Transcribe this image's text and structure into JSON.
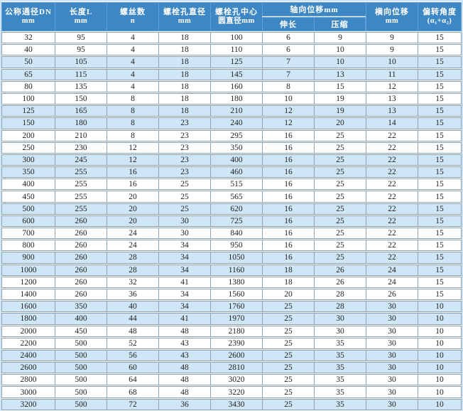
{
  "colors": {
    "header_bg": "#3d87c4",
    "header_text": "#ffffff",
    "row_alt_bg": "#cfe6f7",
    "row_bg": "#ffffff",
    "cell_border": "#8da2b2",
    "header_border": "#5f9fd4",
    "outer_frame": "#cfe4f4",
    "cell_text": "#222222"
  },
  "header": {
    "simple_cols": [
      {
        "line1": "公称通径DN",
        "line2": "mm"
      },
      {
        "line1": "长度L",
        "line2": "mm"
      },
      {
        "line1": "螺丝数",
        "line2": "n"
      },
      {
        "line1": "螺栓孔直径",
        "line2": "mm"
      },
      {
        "line1": "螺栓孔中心",
        "line2": "圆直径mm"
      }
    ],
    "axial_group": {
      "title": "轴向位移mm",
      "extend": "伸长",
      "compress": "压缩"
    },
    "lateral": {
      "line1": "横向位移",
      "line2": "mm"
    },
    "deflection": {
      "line1": "偏转角度",
      "line2": "(α₁+α₂)"
    }
  },
  "chart_data": {
    "type": "table",
    "columns": [
      "公称通径DN mm",
      "长度L mm",
      "螺丝数 n",
      "螺栓孔直径 mm",
      "螺栓孔中心圆直径mm",
      "轴向位移mm 伸长",
      "轴向位移mm 压缩",
      "横向位移 mm",
      "偏转角度 (α₁+α₂)"
    ],
    "rows": "see table.rows"
  },
  "table": {
    "rows": [
      [
        32,
        95,
        4,
        18,
        100,
        6,
        9,
        9,
        15
      ],
      [
        40,
        95,
        4,
        18,
        110,
        6,
        10,
        9,
        15
      ],
      [
        50,
        105,
        4,
        18,
        125,
        7,
        10,
        10,
        15
      ],
      [
        65,
        115,
        4,
        18,
        145,
        7,
        13,
        11,
        15
      ],
      [
        80,
        135,
        4,
        18,
        160,
        8,
        15,
        12,
        15
      ],
      [
        100,
        150,
        8,
        18,
        180,
        10,
        19,
        13,
        15
      ],
      [
        125,
        165,
        8,
        18,
        210,
        12,
        19,
        13,
        15
      ],
      [
        150,
        180,
        8,
        23,
        240,
        12,
        20,
        14,
        15
      ],
      [
        200,
        210,
        8,
        23,
        295,
        16,
        25,
        22,
        15
      ],
      [
        250,
        230,
        12,
        23,
        350,
        16,
        25,
        22,
        15
      ],
      [
        300,
        245,
        12,
        23,
        400,
        16,
        25,
        22,
        15
      ],
      [
        350,
        255,
        16,
        23,
        460,
        16,
        25,
        22,
        15
      ],
      [
        400,
        255,
        16,
        25,
        515,
        16,
        25,
        22,
        15
      ],
      [
        450,
        255,
        20,
        25,
        565,
        16,
        25,
        22,
        15
      ],
      [
        500,
        255,
        20,
        25,
        620,
        16,
        25,
        22,
        15
      ],
      [
        600,
        260,
        20,
        30,
        725,
        16,
        25,
        22,
        15
      ],
      [
        700,
        260,
        24,
        30,
        840,
        16,
        25,
        22,
        15
      ],
      [
        800,
        260,
        24,
        34,
        950,
        16,
        25,
        22,
        15
      ],
      [
        900,
        260,
        28,
        34,
        1050,
        16,
        25,
        22,
        15
      ],
      [
        1000,
        260,
        28,
        34,
        1160,
        18,
        26,
        24,
        15
      ],
      [
        1200,
        260,
        32,
        41,
        1380,
        18,
        26,
        24,
        15
      ],
      [
        1400,
        260,
        36,
        34,
        1560,
        20,
        28,
        26,
        15
      ],
      [
        1600,
        350,
        40,
        34,
        1760,
        25,
        28,
        30,
        10
      ],
      [
        1800,
        400,
        44,
        41,
        1970,
        25,
        30,
        30,
        10
      ],
      [
        2000,
        450,
        48,
        48,
        2180,
        25,
        30,
        30,
        10
      ],
      [
        2200,
        500,
        52,
        43,
        2390,
        25,
        35,
        30,
        10
      ],
      [
        2400,
        500,
        56,
        43,
        2600,
        25,
        35,
        30,
        10
      ],
      [
        2600,
        500,
        60,
        48,
        2810,
        25,
        35,
        30,
        10
      ],
      [
        2800,
        500,
        64,
        48,
        3020,
        25,
        35,
        30,
        10
      ],
      [
        3000,
        500,
        68,
        48,
        3220,
        25,
        35,
        30,
        10
      ],
      [
        3200,
        500,
        72,
        36,
        3430,
        25,
        35,
        30,
        10
      ]
    ]
  }
}
